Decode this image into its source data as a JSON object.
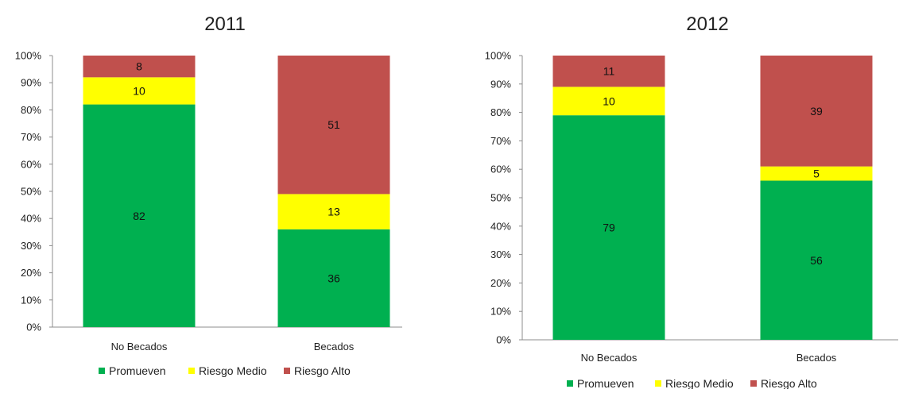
{
  "colors": {
    "promueven": "#00b050",
    "riesgo_medio": "#ffff00",
    "riesgo_alto": "#c0504d",
    "axis": "#8c8c8c",
    "text": "#222222"
  },
  "chart_data": [
    {
      "type": "bar",
      "stacked": "percent",
      "title": "2011",
      "categories": [
        "No Becados",
        "Becados"
      ],
      "y_ticks": [
        "0%",
        "10%",
        "20%",
        "30%",
        "40%",
        "50%",
        "60%",
        "70%",
        "80%",
        "90%",
        "100%"
      ],
      "ylim": [
        0,
        100
      ],
      "grid": false,
      "legend_position": "bottom",
      "series": [
        {
          "name": "Promueven",
          "color": "#00b050",
          "values": [
            82,
            36
          ]
        },
        {
          "name": "Riesgo Medio",
          "color": "#ffff00",
          "values": [
            10,
            13
          ]
        },
        {
          "name": "Riesgo Alto",
          "color": "#c0504d",
          "values": [
            8,
            51
          ]
        }
      ]
    },
    {
      "type": "bar",
      "stacked": "percent",
      "title": "2012",
      "categories": [
        "No Becados",
        "Becados"
      ],
      "y_ticks": [
        "0%",
        "10%",
        "20%",
        "30%",
        "40%",
        "50%",
        "60%",
        "70%",
        "80%",
        "90%",
        "100%"
      ],
      "ylim": [
        0,
        100
      ],
      "grid": false,
      "legend_position": "bottom",
      "series": [
        {
          "name": "Promueven",
          "color": "#00b050",
          "values": [
            79,
            56
          ]
        },
        {
          "name": "Riesgo Medio",
          "color": "#ffff00",
          "values": [
            10,
            5
          ]
        },
        {
          "name": "Riesgo Alto",
          "color": "#c0504d",
          "values": [
            11,
            39
          ]
        }
      ]
    }
  ]
}
